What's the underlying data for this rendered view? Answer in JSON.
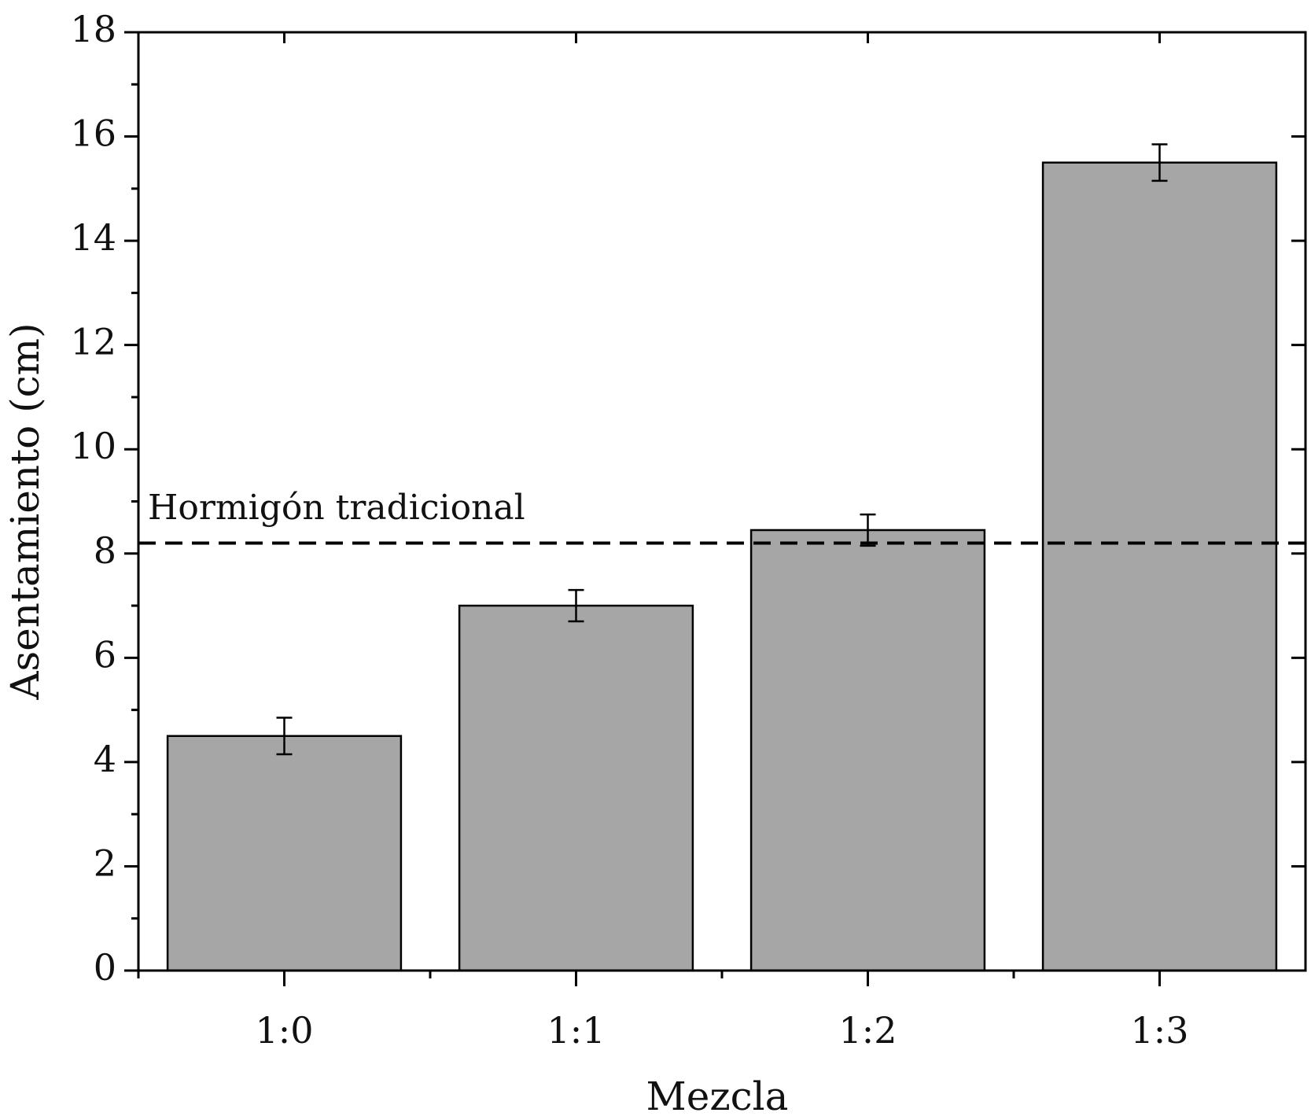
{
  "chart_data": {
    "type": "bar",
    "x_label": "Mezcla",
    "y_label": "Asentamiento (cm)",
    "categories": [
      "1:0",
      "1:1",
      "1:2",
      "1:3"
    ],
    "values": [
      4.5,
      7.0,
      8.45,
      15.5
    ],
    "errors": [
      0.35,
      0.3,
      0.3,
      0.35
    ],
    "color": "#a6a6a6",
    "ylim": [
      0,
      18
    ],
    "yticks": [
      0,
      2,
      4,
      6,
      8,
      10,
      12,
      14,
      16,
      18
    ],
    "reference_line": {
      "value": 8.2,
      "label": "Hormigón tradicional"
    }
  }
}
